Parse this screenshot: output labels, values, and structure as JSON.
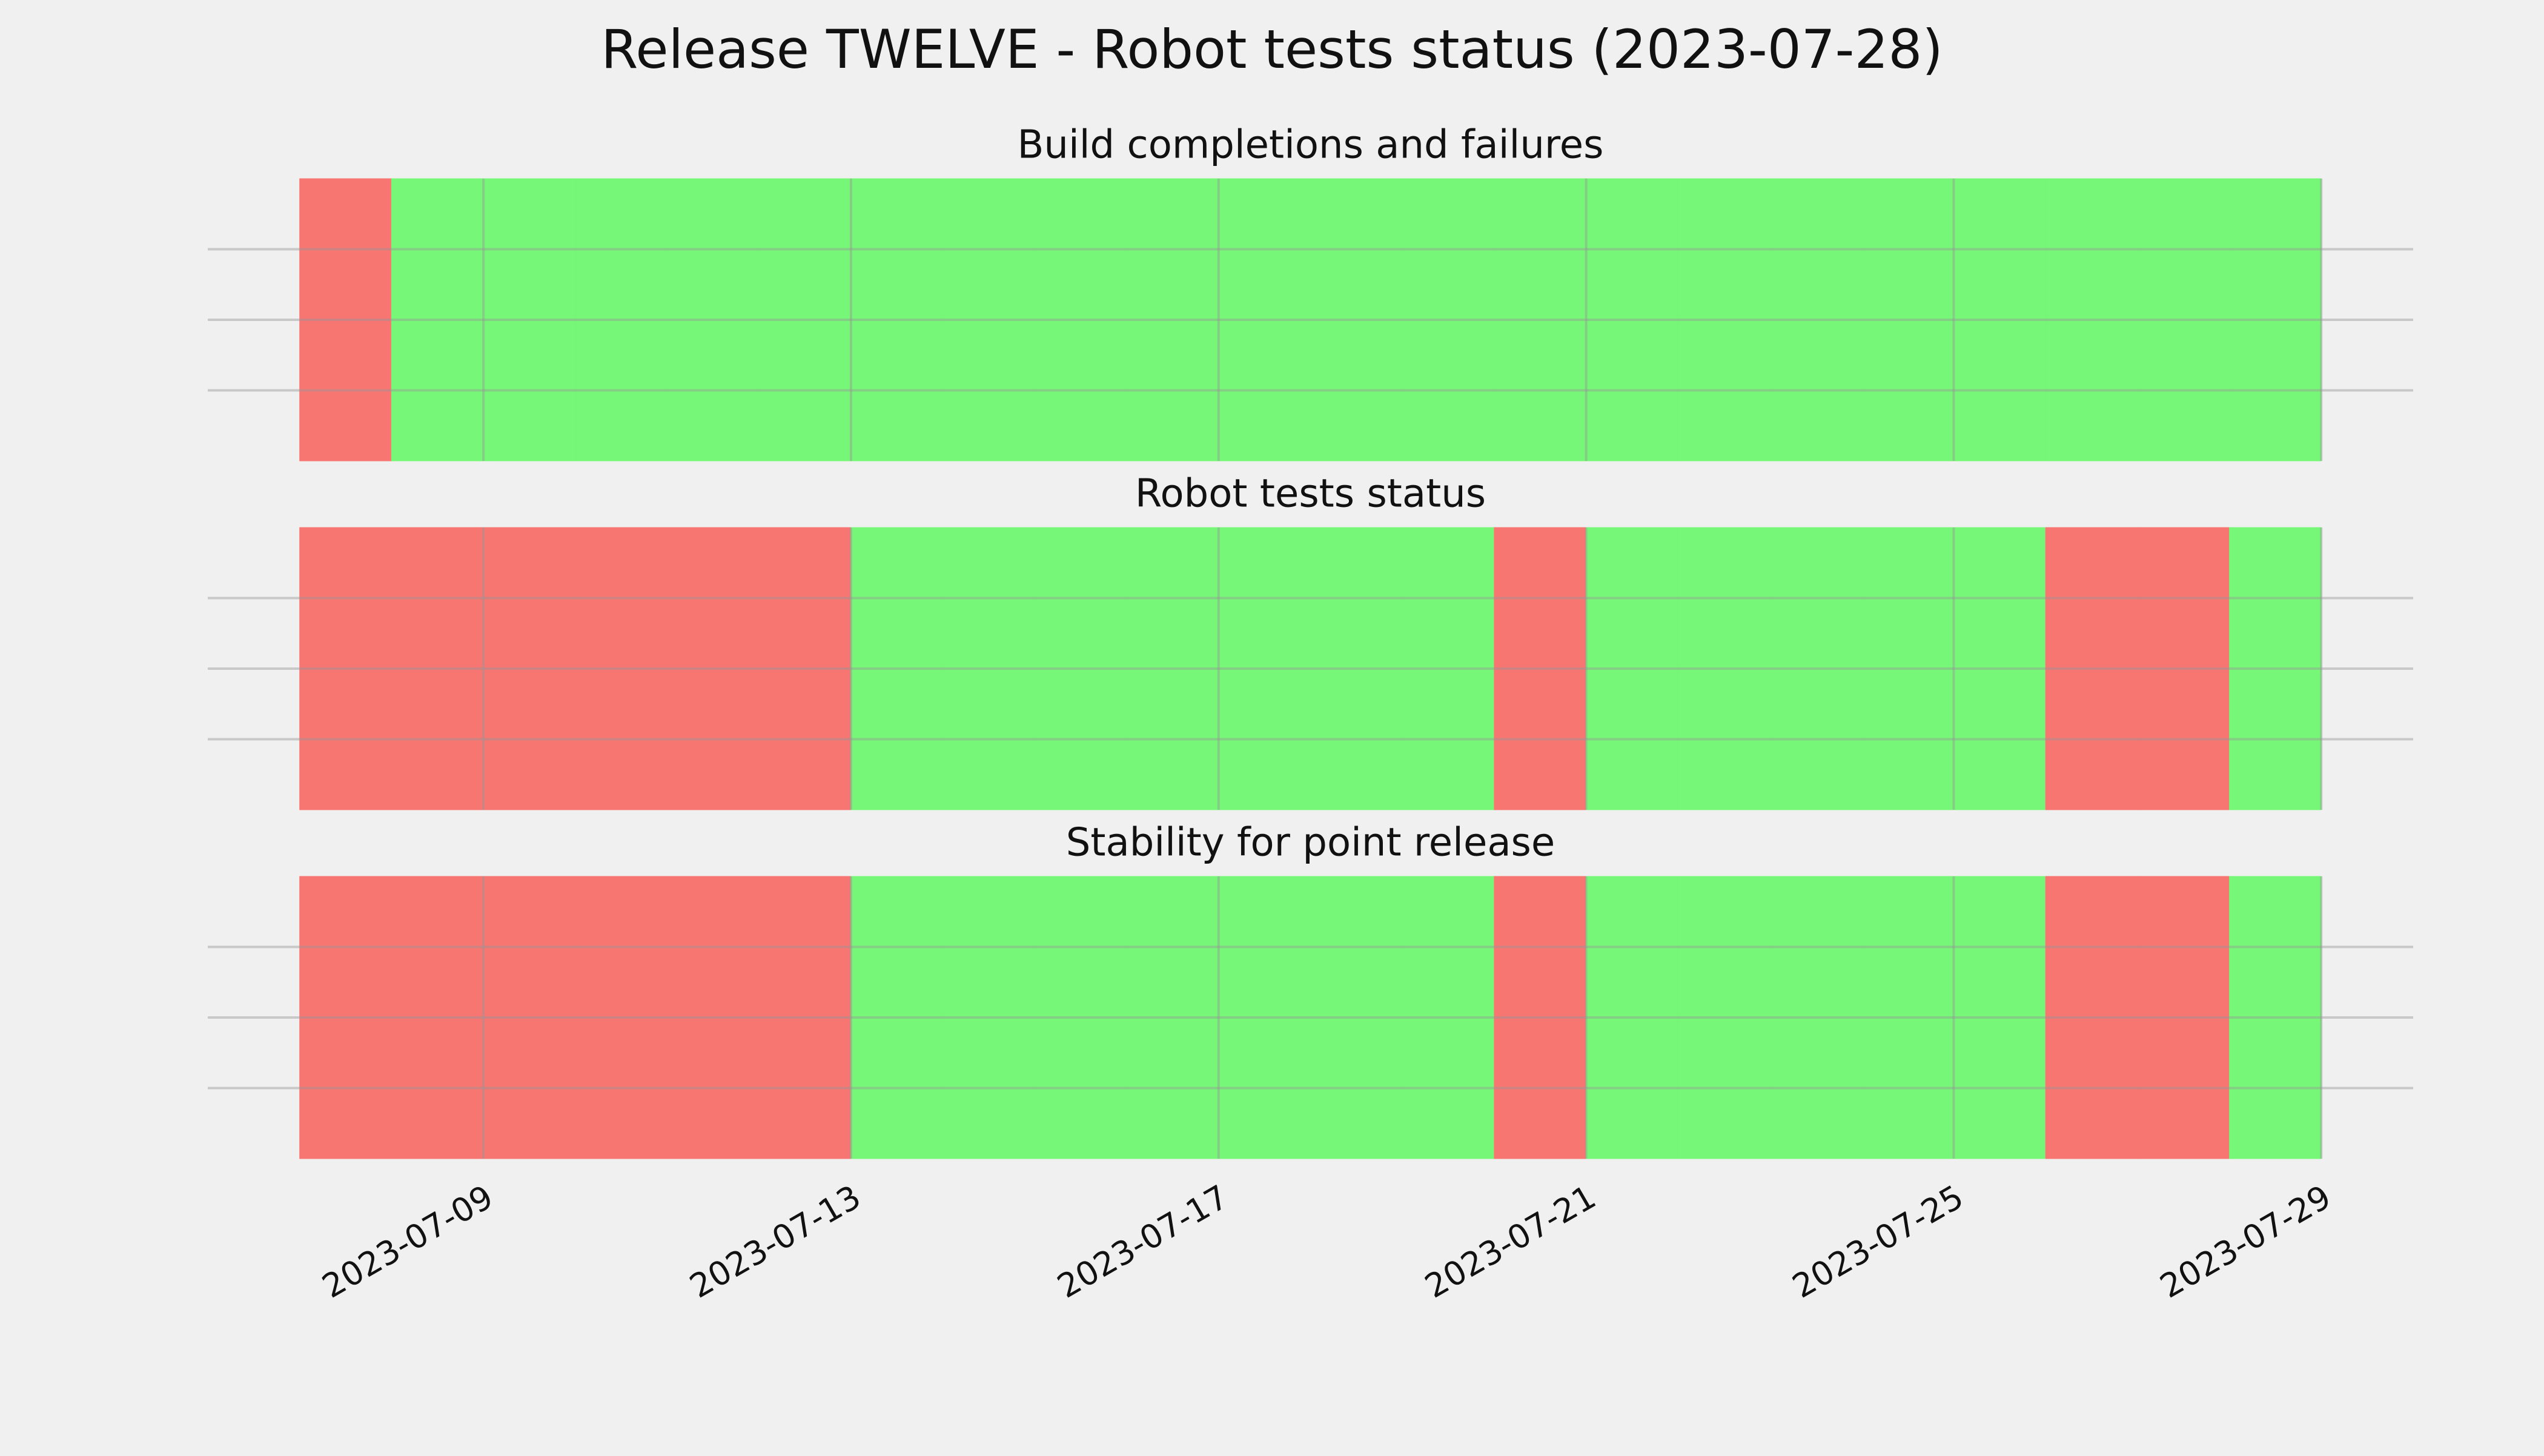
{
  "chart_data": [
    {
      "type": "timeline",
      "title": "Release TWELVE - Robot tests status (2023-07-28)",
      "subtitle": "Build completions and failures",
      "x": [
        "2023-07-07",
        "2023-07-08",
        "2023-07-09",
        "2023-07-10",
        "2023-07-11",
        "2023-07-12",
        "2023-07-13",
        "2023-07-14",
        "2023-07-15",
        "2023-07-16",
        "2023-07-17",
        "2023-07-18",
        "2023-07-19",
        "2023-07-20",
        "2023-07-21",
        "2023-07-22",
        "2023-07-23",
        "2023-07-24",
        "2023-07-25",
        "2023-07-26",
        "2023-07-27",
        "2023-07-28"
      ],
      "values": [
        1,
        1,
        1,
        1,
        1,
        1,
        1,
        1,
        1,
        1,
        1,
        1,
        1,
        1,
        1,
        1,
        1,
        1,
        1,
        1,
        1,
        1
      ],
      "colors": [
        "#f77672",
        "#77f777",
        "#77f777",
        "#77f777",
        "#77f777",
        "#77f777",
        "#77f777",
        "#77f777",
        "#77f777",
        "#77f777",
        "#77f777",
        "#77f777",
        "#77f777",
        "#77f777",
        "#77f777",
        "#77f777",
        "#77f777",
        "#77f777",
        "#77f777",
        "#77f777",
        "#77f777",
        "#77f777"
      ],
      "xlim": [
        "2023-07-06",
        "2023-07-30"
      ],
      "xticks": [],
      "ylim": [
        0,
        1
      ],
      "yticks": [
        0.25,
        0.5,
        0.75
      ],
      "grid": true
    },
    {
      "type": "timeline",
      "subtitle": "Robot tests status",
      "x": [
        "2023-07-07",
        "2023-07-08",
        "2023-07-09",
        "2023-07-10",
        "2023-07-11",
        "2023-07-12",
        "2023-07-13",
        "2023-07-14",
        "2023-07-15",
        "2023-07-16",
        "2023-07-17",
        "2023-07-18",
        "2023-07-19",
        "2023-07-20",
        "2023-07-21",
        "2023-07-22",
        "2023-07-23",
        "2023-07-24",
        "2023-07-25",
        "2023-07-26",
        "2023-07-27",
        "2023-07-28"
      ],
      "values": [
        1,
        1,
        1,
        1,
        1,
        1,
        1,
        1,
        1,
        1,
        1,
        1,
        1,
        1,
        1,
        1,
        1,
        1,
        1,
        1,
        1,
        1
      ],
      "colors": [
        "#f77672",
        "#f77672",
        "#f77672",
        "#f77672",
        "#f77672",
        "#f77672",
        "#77f777",
        "#77f777",
        "#77f777",
        "#77f777",
        "#77f777",
        "#77f777",
        "#77f777",
        "#f77672",
        "#77f777",
        "#77f777",
        "#77f777",
        "#77f777",
        "#77f777",
        "#f77672",
        "#f77672",
        "#77f777"
      ],
      "xlim": [
        "2023-07-06",
        "2023-07-30"
      ],
      "xticks": [],
      "ylim": [
        0,
        1
      ],
      "yticks": [
        0.25,
        0.5,
        0.75
      ],
      "grid": true
    },
    {
      "type": "timeline",
      "subtitle": "Stability for point release",
      "x": [
        "2023-07-07",
        "2023-07-08",
        "2023-07-09",
        "2023-07-10",
        "2023-07-11",
        "2023-07-12",
        "2023-07-13",
        "2023-07-14",
        "2023-07-15",
        "2023-07-16",
        "2023-07-17",
        "2023-07-18",
        "2023-07-19",
        "2023-07-20",
        "2023-07-21",
        "2023-07-22",
        "2023-07-23",
        "2023-07-24",
        "2023-07-25",
        "2023-07-26",
        "2023-07-27",
        "2023-07-28"
      ],
      "values": [
        1,
        1,
        1,
        1,
        1,
        1,
        1,
        1,
        1,
        1,
        1,
        1,
        1,
        1,
        1,
        1,
        1,
        1,
        1,
        1,
        1,
        1
      ],
      "colors": [
        "#f77672",
        "#f77672",
        "#f77672",
        "#f77672",
        "#f77672",
        "#f77672",
        "#77f777",
        "#77f777",
        "#77f777",
        "#77f777",
        "#77f777",
        "#77f777",
        "#77f777",
        "#f77672",
        "#77f777",
        "#77f777",
        "#77f777",
        "#77f777",
        "#77f777",
        "#f77672",
        "#f77672",
        "#77f777"
      ],
      "xlim": [
        "2023-07-06",
        "2023-07-30"
      ],
      "xticks": [
        "2023-07-09",
        "2023-07-13",
        "2023-07-17",
        "2023-07-21",
        "2023-07-25",
        "2023-07-29"
      ],
      "ylim": [
        0,
        1
      ],
      "yticks": [
        0.25,
        0.5,
        0.75
      ],
      "grid": true
    }
  ]
}
